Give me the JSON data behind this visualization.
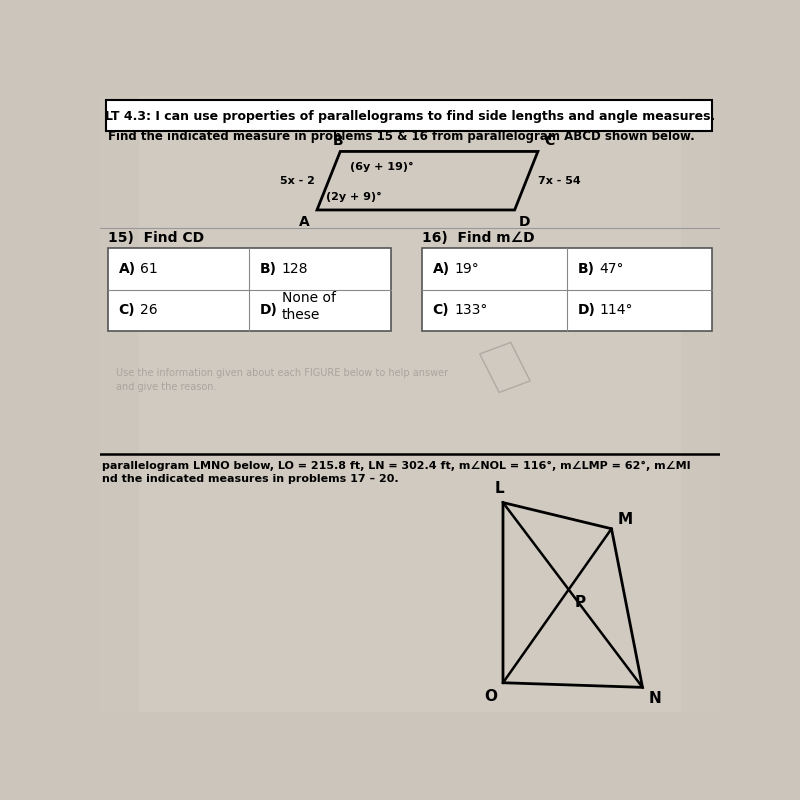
{
  "page_bg": "#c8c2b8",
  "header_text": "LT 4.3: I can use properties of parallelograms to find side lengths and angle measures.",
  "subheader_text": "Find the indicated measure in problems 15 & 16 from parallelogram ABCD shown below.",
  "para_angle_B": "(6y + 19)°",
  "para_angle_A": "(2y + 9)°",
  "para_side_AB": "5x - 2",
  "para_side_CD": "7x - 54",
  "p15_title": "15)  Find CD",
  "p15_A": "61",
  "p15_B": "128",
  "p15_C": "26",
  "p15_D": "None of\nthese",
  "p16_title": "16)  Find m∠D",
  "p16_A": "19°",
  "p16_B": "47°",
  "p16_C": "133°",
  "p16_D": "114°",
  "bottom_text1": "parallelogram LMNO below, LO = 215.8 ft, LN = 302.4 ft, m∠NOL = 116°, m∠LMP = 62°, m∠MI",
  "bottom_text2": "nd the indicated measures in problems 17 – 20.",
  "ghost_text1": "Use the information given about each FIGURE below to help answer",
  "ghost_text2": "and give the reason."
}
